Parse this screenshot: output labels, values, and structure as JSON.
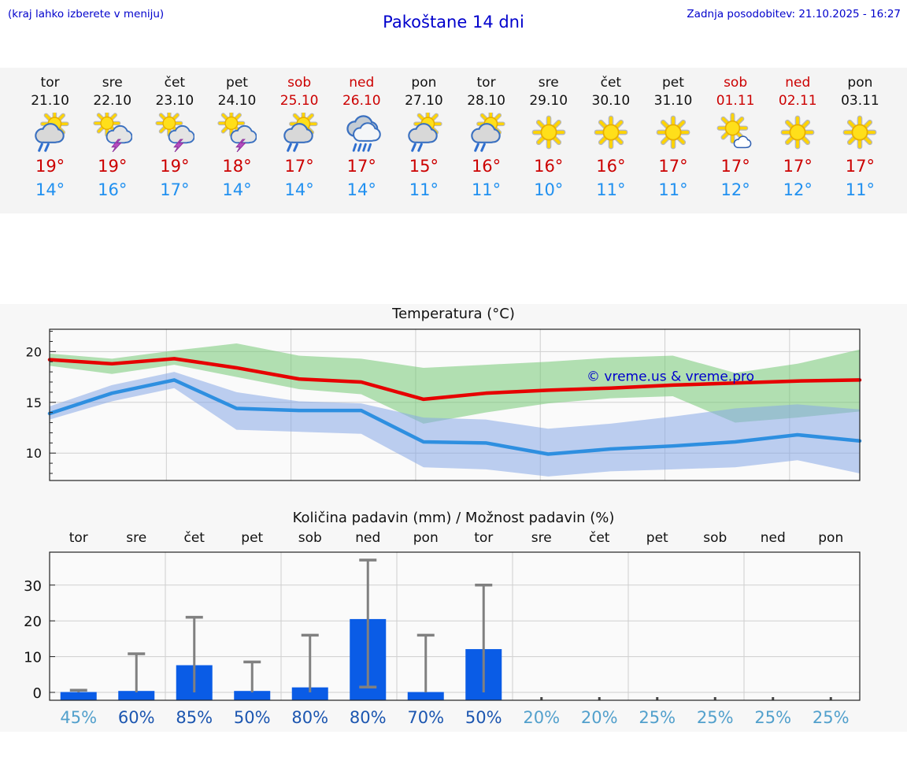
{
  "header": {
    "left_note": "(kraj lahko izberete v meniju)",
    "title": "Pakoštane 14 dni",
    "last_update": "Zadnja posodobitev: 21.10.2025 - 16:27"
  },
  "colors": {
    "link_blue": "#0000cc",
    "weekend_red": "#cc0000",
    "tmax_red": "#cc0000",
    "tmin_blue": "#2090f0",
    "percent_dark": "#1c56b0",
    "percent_light": "#52a0cc",
    "bar_blue": "#0a5ce6",
    "whisker_gray": "#808080",
    "grid_gray": "#cfcfcf",
    "plot_bg": "#fafafa",
    "watermark_blue": "#0000cc"
  },
  "forecast_days": [
    {
      "day": "tor",
      "date": "21.10",
      "weekend": false,
      "icon": "sun-cloud-rain",
      "tmax": "19°",
      "tmin": "14°"
    },
    {
      "day": "sre",
      "date": "22.10",
      "weekend": false,
      "icon": "sun-cloud-storm",
      "tmax": "19°",
      "tmin": "16°"
    },
    {
      "day": "čet",
      "date": "23.10",
      "weekend": false,
      "icon": "sun-cloud-storm",
      "tmax": "19°",
      "tmin": "17°"
    },
    {
      "day": "pet",
      "date": "24.10",
      "weekend": false,
      "icon": "sun-cloud-storm",
      "tmax": "18°",
      "tmin": "14°"
    },
    {
      "day": "sob",
      "date": "25.10",
      "weekend": true,
      "icon": "sun-cloud-rain",
      "tmax": "17°",
      "tmin": "14°"
    },
    {
      "day": "ned",
      "date": "26.10",
      "weekend": true,
      "icon": "cloud-rain",
      "tmax": "17°",
      "tmin": "14°"
    },
    {
      "day": "pon",
      "date": "27.10",
      "weekend": false,
      "icon": "sun-cloud-rain",
      "tmax": "15°",
      "tmin": "11°"
    },
    {
      "day": "tor",
      "date": "28.10",
      "weekend": false,
      "icon": "sun-cloud-rain",
      "tmax": "16°",
      "tmin": "11°"
    },
    {
      "day": "sre",
      "date": "29.10",
      "weekend": false,
      "icon": "sun",
      "tmax": "16°",
      "tmin": "10°"
    },
    {
      "day": "čet",
      "date": "30.10",
      "weekend": false,
      "icon": "sun",
      "tmax": "16°",
      "tmin": "11°"
    },
    {
      "day": "pet",
      "date": "31.10",
      "weekend": false,
      "icon": "sun",
      "tmax": "17°",
      "tmin": "11°"
    },
    {
      "day": "sob",
      "date": "01.11",
      "weekend": true,
      "icon": "sun-cloud",
      "tmax": "17°",
      "tmin": "12°"
    },
    {
      "day": "ned",
      "date": "02.11",
      "weekend": true,
      "icon": "sun",
      "tmax": "17°",
      "tmin": "12°"
    },
    {
      "day": "pon",
      "date": "03.11",
      "weekend": false,
      "icon": "sun",
      "tmax": "17°",
      "tmin": "11°"
    }
  ],
  "chart_data": [
    {
      "type": "line",
      "title": "Temperatura (°C)",
      "watermark": "© vreme.us & vreme.pro",
      "ylim": [
        7.3,
        22.2
      ],
      "yticks": [
        10,
        15,
        20
      ],
      "grid": true,
      "series": [
        {
          "name": "max-temperature",
          "color": "#e60000",
          "values": [
            19.2,
            18.8,
            19.3,
            18.4,
            17.3,
            17.0,
            15.3,
            15.9,
            16.2,
            16.4,
            16.7,
            16.9,
            17.1,
            17.2
          ]
        },
        {
          "name": "min-temperature",
          "color": "#2e8fe0",
          "values": [
            13.9,
            15.9,
            17.2,
            14.4,
            14.2,
            14.2,
            11.1,
            11.0,
            9.9,
            10.4,
            10.7,
            11.1,
            11.8,
            11.2
          ]
        }
      ],
      "bands": [
        {
          "name": "max-temperature-range",
          "color": "#74c874",
          "upper": [
            19.8,
            19.3,
            20.1,
            20.8,
            19.6,
            19.3,
            18.4,
            18.7,
            19.0,
            19.4,
            19.6,
            17.9,
            18.8,
            20.2
          ],
          "lower": [
            18.6,
            17.8,
            18.7,
            17.5,
            16.3,
            15.8,
            12.9,
            14.0,
            14.9,
            15.4,
            15.6,
            13.0,
            13.5,
            14.1
          ]
        },
        {
          "name": "min-temperature-range",
          "color": "#86a8e6",
          "upper": [
            14.6,
            16.7,
            18.0,
            16.0,
            15.1,
            14.9,
            13.5,
            13.3,
            12.4,
            12.9,
            13.6,
            14.4,
            14.8,
            14.3
          ],
          "lower": [
            13.3,
            15.1,
            16.4,
            12.3,
            12.1,
            11.9,
            8.6,
            8.4,
            7.7,
            8.2,
            8.4,
            8.6,
            9.3,
            8.0
          ]
        }
      ]
    },
    {
      "type": "bar",
      "title": "Količina padavin (mm) / Možnost padavin (%)",
      "top_labels": [
        "tor",
        "sre",
        "čet",
        "pet",
        "sob",
        "ned",
        "pon",
        "tor",
        "sre",
        "čet",
        "pet",
        "sob",
        "ned",
        "pon"
      ],
      "ylim": [
        -2.2,
        39.2
      ],
      "yticks": [
        0,
        10,
        20,
        30
      ],
      "grid": true,
      "values": [
        0.1,
        0.4,
        7.6,
        0.4,
        1.4,
        20.5,
        0.1,
        12.1,
        0,
        0,
        0,
        0,
        0,
        0
      ],
      "whisker_high": [
        0.6,
        10.8,
        21,
        8.5,
        16,
        37,
        16,
        30,
        null,
        null,
        null,
        null,
        null,
        null
      ],
      "whisker_low": [
        0,
        0,
        0,
        0,
        0,
        1.5,
        0,
        0,
        null,
        null,
        null,
        null,
        null,
        null
      ],
      "percent": [
        {
          "label": "45%",
          "strong": false
        },
        {
          "label": "60%",
          "strong": true
        },
        {
          "label": "85%",
          "strong": true
        },
        {
          "label": "50%",
          "strong": true
        },
        {
          "label": "80%",
          "strong": true
        },
        {
          "label": "80%",
          "strong": true
        },
        {
          "label": "70%",
          "strong": true
        },
        {
          "label": "50%",
          "strong": true
        },
        {
          "label": "20%",
          "strong": false
        },
        {
          "label": "20%",
          "strong": false
        },
        {
          "label": "25%",
          "strong": false
        },
        {
          "label": "25%",
          "strong": false
        },
        {
          "label": "25%",
          "strong": false
        },
        {
          "label": "25%",
          "strong": false
        }
      ]
    }
  ]
}
